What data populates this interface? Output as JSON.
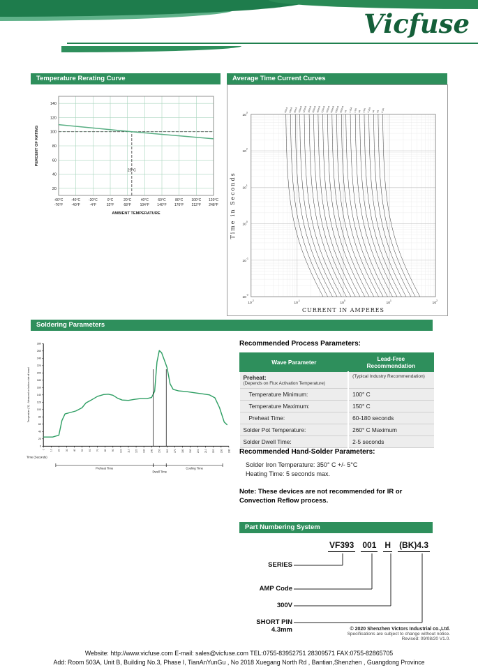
{
  "brand": {
    "logo": "Vicfuse"
  },
  "sections": {
    "rerating_title": "Temperature Rerating Curve",
    "tcc_title": "Average Time Current Curves",
    "soldering_title": "Soldering Parameters",
    "part_numbering_title": "Part Numbering System"
  },
  "chart_data": [
    {
      "id": "rerating",
      "type": "line",
      "title": "Temperature Rerating Curve",
      "xlabel": "AMBIENT TEMPERATURE",
      "ylabel": "PERCENT OF RATING",
      "xlim": [
        -60,
        120
      ],
      "ylim": [
        10,
        150
      ],
      "grid": true,
      "x_ticks": [
        -60,
        -40,
        -20,
        0,
        20,
        40,
        60,
        80,
        100,
        120
      ],
      "x_tick_labels_c": [
        "-60°C",
        "-40°C",
        "-20°C",
        "0°C",
        "20°C",
        "40°C",
        "60°C",
        "80°C",
        "100°C",
        "120°C"
      ],
      "x_tick_labels_f": [
        "-76°F",
        "-40°F",
        "-4°F",
        "32°F",
        "68°F",
        "104°F",
        "140°F",
        "176°F",
        "212°F",
        "248°F"
      ],
      "y_ticks": [
        20,
        40,
        60,
        80,
        100,
        120,
        140
      ],
      "reference": {
        "h_line": 100,
        "v_line": 25,
        "v_label": "25°C"
      },
      "series": [
        {
          "name": "derating-curve",
          "x": [
            -60,
            25,
            120
          ],
          "y": [
            110,
            100,
            90
          ],
          "color": "#58ae83"
        }
      ]
    },
    {
      "id": "tcc",
      "type": "line",
      "title": "Average Time Current Curves",
      "xlabel": "CURRENT IN AMPERES",
      "ylabel": "Time in Seconds",
      "x_log_range": [
        -2,
        2
      ],
      "y_log_range": [
        -2,
        3
      ],
      "grid": true,
      "ratings_amps": [
        0.05,
        0.063,
        0.08,
        0.1,
        0.125,
        0.16,
        0.2,
        0.25,
        0.315,
        0.4,
        0.5,
        0.63,
        0.8,
        1.0,
        1.25,
        1.6,
        2.0,
        2.5,
        3.15,
        4.0,
        5.0,
        6.3
      ],
      "rating_labels": [
        "50mA",
        "63mA",
        "80mA",
        "100mA",
        "125mA",
        "160mA",
        "200mA",
        "250mA",
        "315mA",
        "400mA",
        "500mA",
        "630mA",
        "800mA",
        "1A",
        "1.25A",
        "1.6A",
        "2A",
        "2.5A",
        "3.15A",
        "4A",
        "5A",
        "6.3A"
      ]
    },
    {
      "id": "solder_profile",
      "type": "line",
      "xlabel": "Time (Seconds)",
      "ylabel": "Temperature (°C) - Measured on bottom side of board",
      "xlim": [
        0,
        240
      ],
      "ylim": [
        0,
        280
      ],
      "x_tick_step": 10,
      "y_tick_step": 20,
      "line_color": "#2e9e63",
      "profile": [
        [
          0,
          25
        ],
        [
          12,
          25
        ],
        [
          20,
          30
        ],
        [
          24,
          70
        ],
        [
          28,
          88
        ],
        [
          35,
          92
        ],
        [
          42,
          96
        ],
        [
          50,
          105
        ],
        [
          55,
          118
        ],
        [
          62,
          126
        ],
        [
          70,
          136
        ],
        [
          78,
          141
        ],
        [
          84,
          142
        ],
        [
          90,
          139
        ],
        [
          96,
          131
        ],
        [
          102,
          126
        ],
        [
          110,
          125
        ],
        [
          118,
          128
        ],
        [
          126,
          130
        ],
        [
          134,
          130
        ],
        [
          140,
          133
        ],
        [
          144,
          150
        ],
        [
          147,
          230
        ],
        [
          150,
          261
        ],
        [
          153,
          255
        ],
        [
          156,
          238
        ],
        [
          160,
          215
        ],
        [
          164,
          170
        ],
        [
          168,
          155
        ],
        [
          175,
          151
        ],
        [
          185,
          149
        ],
        [
          195,
          146
        ],
        [
          205,
          143
        ],
        [
          215,
          140
        ],
        [
          222,
          132
        ],
        [
          228,
          105
        ],
        [
          234,
          66
        ],
        [
          238,
          58
        ]
      ],
      "dwell_lines": [
        142,
        159
      ],
      "phases": [
        {
          "label": "Preheat Time",
          "from": 16,
          "to": 142
        },
        {
          "label": "Dwell Time",
          "from": 142,
          "to": 159
        },
        {
          "label": "Cooling Time",
          "from": 159,
          "to": 232
        }
      ]
    }
  ],
  "process_params": {
    "heading": "Recommended Process Parameters:",
    "table": {
      "col1": "Wave Parameter",
      "col2": "Lead-Free Recommendation",
      "rows": [
        {
          "p": "Preheat:",
          "sub": "(Depends on Flux Activation Temperature)",
          "v": "(Typical Industry Recommendation)",
          "group": true
        },
        {
          "p": "Temperature Minimum:",
          "v": "100° C",
          "indent": true
        },
        {
          "p": "Temperature Maximum:",
          "v": "150° C",
          "indent": true
        },
        {
          "p": "Preheat Time:",
          "v": "60-180 seconds",
          "indent": true
        },
        {
          "p": "Solder Pot Temperature:",
          "v": "260° C Maximum"
        },
        {
          "p": "Solder Dwell Time:",
          "v": "2-5 seconds"
        }
      ]
    }
  },
  "hand_solder": {
    "heading": "Recommended Hand-Solder Parameters:",
    "lines": [
      "Solder Iron Temperature:  350° C +/- 5°C",
      "Heating Time:  5 seconds max."
    ]
  },
  "note": "Note:  These devices are not recommended for IR or Convection Reflow process.",
  "part_number": {
    "segments": [
      "VF393",
      "001",
      "H",
      "(BK)4.3"
    ],
    "labels": [
      "SERIES",
      "AMP Code",
      "300V",
      "SHORT PIN 4.3mm"
    ]
  },
  "footer": {
    "copyright": "© 2020 Shenzhen Victors Industrial co.,Ltd.",
    "notice": "Specifications are subject to change without notice.",
    "revised": "Revised: 09/08/20    V1.0.",
    "contact": "Website: http://www.vicfuse.com  E-mail: sales@vicfuse.com  TEL:0755-83952751 28309571  FAX:0755-82865705",
    "address": "Add: Room 503A, Unit B, Building No.3, Phase I, TianAnYunGu , No 2018 Xuegang North Rd , Bantian,Shenzhen , Guangdong Province"
  }
}
